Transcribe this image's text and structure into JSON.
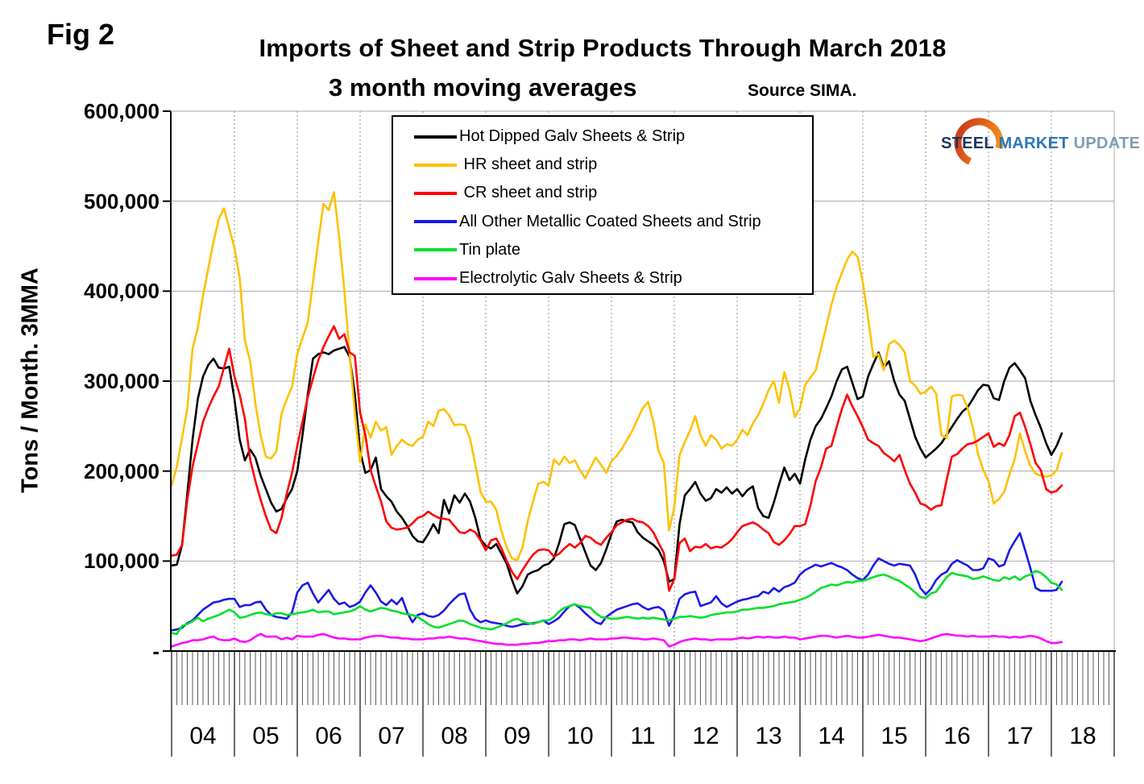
{
  "header": {
    "fig_label": "Fig 2",
    "title": "Imports of Sheet and Strip Products Through March 2018",
    "subtitle": "3 month moving averages",
    "source": "Source SIMA."
  },
  "logo": {
    "steel": "STEEL",
    "market": "MARKET",
    "update": "UPDATE",
    "crescent_color_top": "#F7941D",
    "crescent_color_bottom": "#D0401A"
  },
  "chart_data": {
    "type": "line",
    "title": "Imports of Sheet and Strip Products Through March 2018",
    "subtitle": "3 month moving averages",
    "ylabel": "Tons / Month. 3MMA",
    "unit": "tons per month; series values in thousands of tons",
    "grid": "horizontal solid gray at 100k steps; vertical dotted gray at year boundaries",
    "legend_position": "top inside plot, boxed",
    "ylim_thousands": [
      0,
      600
    ],
    "y_ticks": [
      {
        "label": "600,000",
        "value": 600
      },
      {
        "label": "500,000",
        "value": 500
      },
      {
        "label": "400,000",
        "value": 400
      },
      {
        "label": "300,000",
        "value": 300
      },
      {
        "label": "200,000",
        "value": 200
      },
      {
        "label": "100,000",
        "value": 100
      },
      {
        "label": "-",
        "value": 0
      }
    ],
    "x_axis": {
      "start": "2004-01",
      "end": "2018-03",
      "frequency": "monthly",
      "year_labels": [
        "04",
        "05",
        "06",
        "07",
        "08",
        "09",
        "10",
        "11",
        "12",
        "13",
        "14",
        "15",
        "16",
        "17",
        "18"
      ]
    },
    "series": [
      {
        "name": "Hot Dipped Galv Sheets & Strip",
        "legend_label": "Hot Dipped Galv Sheets & Strip",
        "color": "#000000",
        "values": [
          95,
          96,
          118,
          175,
          235,
          280,
          305,
          318,
          325,
          315,
          314,
          316,
          280,
          235,
          212,
          224,
          215,
          195,
          180,
          165,
          155,
          158,
          170,
          180,
          200,
          240,
          285,
          325,
          330,
          332,
          330,
          334,
          336,
          338,
          327,
          285,
          222,
          198,
          201,
          215,
          180,
          172,
          166,
          155,
          148,
          139,
          128,
          122,
          121,
          130,
          141,
          131,
          168,
          153,
          173,
          165,
          175,
          166,
          148,
          124,
          117,
          114,
          119,
          108,
          97,
          79,
          64,
          72,
          85,
          88,
          90,
          95,
          97,
          103,
          120,
          141,
          143,
          140,
          125,
          110,
          95,
          90,
          98,
          113,
          130,
          144,
          146,
          144,
          143,
          132,
          126,
          122,
          118,
          112,
          100,
          77,
          80,
          141,
          173,
          180,
          188,
          175,
          167,
          170,
          180,
          176,
          182,
          175,
          180,
          172,
          179,
          183,
          159,
          150,
          148,
          165,
          185,
          204,
          190,
          197,
          186,
          213,
          235,
          250,
          258,
          270,
          283,
          300,
          313,
          316,
          298,
          280,
          283,
          305,
          319,
          332,
          315,
          322,
          300,
          285,
          278,
          258,
          238,
          225,
          215,
          220,
          225,
          231,
          240,
          249,
          258,
          266,
          271,
          280,
          290,
          296,
          295,
          281,
          279,
          300,
          315,
          320,
          312,
          303,
          278,
          262,
          248,
          231,
          218,
          228,
          242
        ]
      },
      {
        "name": "HR sheet and strip",
        "legend_label": " HR sheet and strip",
        "color": "#FFC000",
        "values": [
          184,
          205,
          237,
          270,
          336,
          359,
          395,
          425,
          455,
          480,
          492,
          470,
          448,
          415,
          345,
          322,
          275,
          240,
          216,
          214,
          222,
          264,
          280,
          294,
          330,
          348,
          365,
          410,
          455,
          497,
          490,
          510,
          460,
          400,
          330,
          265,
          210,
          252,
          237,
          255,
          245,
          249,
          218,
          228,
          235,
          230,
          228,
          235,
          238,
          255,
          250,
          267,
          269,
          262,
          251,
          252,
          251,
          236,
          207,
          177,
          166,
          166,
          157,
          133,
          115,
          103,
          101,
          115,
          144,
          166,
          186,
          188,
          184,
          213,
          207,
          216,
          209,
          212,
          201,
          192,
          204,
          215,
          207,
          198,
          211,
          217,
          225,
          235,
          245,
          258,
          270,
          277,
          255,
          222,
          209,
          134,
          160,
          218,
          232,
          245,
          261,
          240,
          228,
          240,
          235,
          225,
          230,
          228,
          235,
          246,
          240,
          253,
          262,
          275,
          290,
          300,
          276,
          310,
          291,
          260,
          270,
          296,
          304,
          312,
          336,
          360,
          385,
          405,
          420,
          435,
          444,
          438,
          410,
          370,
          327,
          330,
          312,
          341,
          345,
          340,
          332,
          300,
          295,
          286,
          288,
          294,
          286,
          240,
          237,
          283,
          285,
          284,
          270,
          249,
          219,
          201,
          189,
          164,
          169,
          177,
          196,
          213,
          242,
          222,
          206,
          197,
          195,
          194,
          195,
          201,
          220
        ]
      },
      {
        "name": "CR sheet and strip",
        "legend_label": " CR sheet and strip",
        "color": "#FF0000",
        "values": [
          106,
          107,
          118,
          168,
          205,
          230,
          255,
          270,
          283,
          294,
          315,
          336,
          305,
          285,
          258,
          213,
          189,
          168,
          150,
          135,
          131,
          148,
          175,
          198,
          228,
          255,
          282,
          303,
          323,
          338,
          350,
          361,
          347,
          352,
          332,
          328,
          265,
          240,
          201,
          183,
          166,
          144,
          137,
          135,
          136,
          137,
          142,
          148,
          150,
          155,
          151,
          148,
          147,
          146,
          139,
          132,
          131,
          135,
          132,
          123,
          112,
          123,
          125,
          114,
          100,
          88,
          80,
          90,
          99,
          107,
          112,
          113,
          112,
          105,
          108,
          114,
          119,
          115,
          120,
          128,
          126,
          121,
          118,
          126,
          132,
          140,
          143,
          146,
          147,
          144,
          143,
          139,
          132,
          120,
          109,
          67,
          80,
          120,
          125,
          111,
          116,
          115,
          119,
          114,
          116,
          115,
          119,
          124,
          132,
          139,
          141,
          143,
          140,
          135,
          131,
          121,
          118,
          123,
          130,
          139,
          139,
          141,
          162,
          189,
          204,
          225,
          228,
          249,
          269,
          285,
          272,
          261,
          249,
          235,
          231,
          228,
          220,
          216,
          211,
          218,
          201,
          186,
          176,
          164,
          162,
          157,
          161,
          162,
          190,
          216,
          219,
          225,
          230,
          231,
          234,
          238,
          242,
          227,
          231,
          228,
          240,
          261,
          265,
          249,
          230,
          209,
          201,
          180,
          176,
          178,
          184
        ]
      },
      {
        "name": "All Other Metallic Coated Sheets and Strip",
        "legend_label": "All Other Metallic Coated Sheets and Strip",
        "color": "#1A1AE8",
        "values": [
          23,
          24,
          26,
          31,
          34,
          40,
          46,
          50,
          54,
          55,
          57,
          58,
          58,
          49,
          51,
          51,
          54,
          55,
          46,
          40,
          38,
          37,
          36,
          43,
          65,
          73,
          76,
          64,
          54,
          61,
          68,
          58,
          52,
          54,
          49,
          51,
          55,
          65,
          73,
          65,
          55,
          51,
          57,
          52,
          59,
          43,
          32,
          40,
          42,
          39,
          38,
          40,
          45,
          52,
          58,
          63,
          64,
          46,
          36,
          32,
          34,
          32,
          31,
          30,
          28,
          27,
          28,
          30,
          30,
          31,
          32,
          34,
          30,
          33,
          37,
          44,
          50,
          52,
          48,
          42,
          37,
          32,
          30,
          38,
          42,
          46,
          48,
          50,
          52,
          53,
          49,
          46,
          48,
          49,
          45,
          28,
          40,
          58,
          63,
          65,
          66,
          50,
          52,
          54,
          61,
          53,
          49,
          52,
          55,
          57,
          58,
          60,
          61,
          66,
          64,
          70,
          66,
          71,
          73,
          76,
          85,
          90,
          93,
          96,
          94,
          96,
          98,
          95,
          93,
          90,
          85,
          81,
          79,
          85,
          95,
          103,
          100,
          97,
          95,
          97,
          96,
          95,
          85,
          70,
          63,
          69,
          79,
          85,
          88,
          97,
          101,
          98,
          95,
          90,
          90,
          92,
          103,
          101,
          94,
          96,
          112,
          122,
          131,
          112,
          92,
          70,
          67,
          67,
          67,
          68,
          77
        ]
      },
      {
        "name": "Tin plate",
        "legend_label": "Tin plate",
        "color": "#00E029",
        "values": [
          20,
          19,
          28,
          30,
          33,
          37,
          33,
          36,
          38,
          40,
          43,
          46,
          43,
          37,
          38,
          40,
          42,
          43,
          41,
          40,
          42,
          42,
          40,
          41,
          42,
          43,
          44,
          46,
          43,
          44,
          44,
          41,
          42,
          43,
          44,
          46,
          50,
          46,
          44,
          46,
          48,
          47,
          45,
          44,
          42,
          41,
          40,
          38,
          34,
          30,
          27,
          26,
          28,
          30,
          32,
          34,
          33,
          30,
          28,
          26,
          25,
          24,
          26,
          28,
          31,
          34,
          36,
          33,
          31,
          30,
          32,
          34,
          34,
          38,
          44,
          48,
          50,
          52,
          50,
          49,
          48,
          42,
          38,
          37,
          36,
          36,
          37,
          38,
          37,
          36,
          37,
          36,
          37,
          36,
          35,
          34,
          36,
          38,
          38,
          39,
          38,
          37,
          38,
          40,
          41,
          42,
          43,
          43,
          44,
          46,
          46,
          47,
          48,
          48,
          49,
          50,
          52,
          53,
          54,
          55,
          57,
          59,
          62,
          66,
          70,
          72,
          74,
          73,
          75,
          77,
          76,
          78,
          78,
          80,
          82,
          84,
          85,
          83,
          80,
          78,
          74,
          70,
          65,
          60,
          59,
          64,
          66,
          74,
          82,
          87,
          85,
          84,
          83,
          80,
          81,
          83,
          81,
          79,
          78,
          82,
          80,
          83,
          79,
          83,
          85,
          89,
          87,
          82,
          76,
          74,
          68
        ]
      },
      {
        "name": "Electrolytic Galv Sheets & Strip",
        "legend_label": "Electrolytic Galv Sheets & Strip",
        "color": "#FF00FF",
        "values": [
          5,
          7,
          9,
          10,
          12,
          12,
          13,
          15,
          16,
          13,
          12,
          12,
          14,
          11,
          10,
          12,
          16,
          19,
          16,
          16,
          16,
          13,
          15,
          13,
          17,
          16,
          16,
          16,
          18,
          19,
          17,
          15,
          14,
          14,
          13,
          13,
          13,
          15,
          16,
          17,
          17,
          16,
          15,
          15,
          14,
          14,
          13,
          13,
          13,
          14,
          14,
          15,
          15,
          16,
          15,
          14,
          14,
          13,
          12,
          11,
          10,
          9,
          8,
          8,
          7,
          7,
          7,
          8,
          8,
          9,
          9,
          10,
          11,
          11,
          12,
          12,
          13,
          13,
          12,
          13,
          14,
          13,
          13,
          13,
          14,
          14,
          15,
          15,
          14,
          14,
          13,
          13,
          14,
          13,
          12,
          5,
          7,
          10,
          12,
          13,
          14,
          13,
          13,
          12,
          13,
          13,
          13,
          13,
          14,
          15,
          14,
          15,
          16,
          15,
          16,
          15,
          15,
          16,
          15,
          15,
          13,
          14,
          15,
          16,
          17,
          17,
          16,
          15,
          16,
          17,
          16,
          15,
          15,
          16,
          17,
          18,
          17,
          16,
          15,
          15,
          14,
          13,
          12,
          11,
          12,
          14,
          16,
          18,
          19,
          18,
          17,
          17,
          16,
          17,
          16,
          16,
          16,
          17,
          16,
          16,
          15,
          16,
          15,
          16,
          17,
          16,
          14,
          11,
          9,
          9,
          10
        ]
      }
    ]
  }
}
